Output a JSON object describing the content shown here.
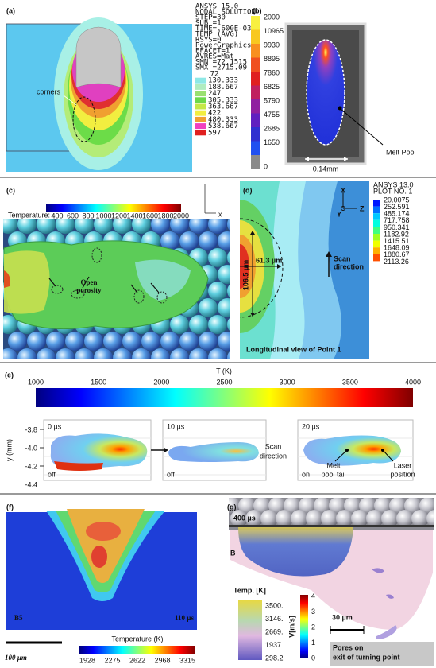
{
  "panels": {
    "a": {
      "label": "(a)",
      "ansys_lines": [
        "ANSYS 15.0",
        "NODAL SOLUTION",
        "STEP=30",
        "SUB =1",
        "TIME=.600E-03",
        "TEMP      (AVG)",
        "RSYS=0",
        "PowerGraphics",
        "EFACET=1",
        "AVRES=Mat",
        "SMN =72.1515",
        "SMX =2715.09"
      ],
      "legend": [
        "72",
        "130.333",
        "188.667",
        "247",
        "305.333",
        "363.667",
        "422",
        "480.333",
        "538.667",
        "597"
      ],
      "annotation": "corners"
    },
    "b": {
      "label": "(b)",
      "scale": [
        "2000",
        "10965",
        "9930",
        "8895",
        "7860",
        "6825",
        "5790",
        "4755",
        "2685",
        "1650",
        "0"
      ],
      "scale_bar": "0.14mm",
      "callout": "Melt Pool"
    },
    "c": {
      "label": "(c)",
      "colorbar_title": "Temperature:",
      "colorbar_ticks": [
        "400",
        "600",
        "800",
        "1000",
        "1200",
        "1400",
        "1600",
        "1800",
        "2000"
      ],
      "annotation": [
        "Open",
        "porosity"
      ],
      "axis": "x"
    },
    "d": {
      "label": "(d)",
      "header": [
        "ANSYS 13.0",
        "PLOT NO.   1"
      ],
      "legend": [
        "20.0075",
        "252.591",
        "485.174",
        "717.758",
        "950.341",
        "1182.92",
        "1415.51",
        "1648.09",
        "1880.67",
        "2113.26"
      ],
      "width_label": "61.3 µm",
      "depth_label": "106.5 µm",
      "direction": [
        "Scan",
        "direction"
      ],
      "caption": "Longitudinal view of Point 1",
      "axes": [
        "X",
        "Y",
        "Z"
      ]
    },
    "e": {
      "label": "(e)",
      "colorbar_title": "T (K)",
      "colorbar_ticks": [
        "1000",
        "1500",
        "2000",
        "2500",
        "3000",
        "3500",
        "4000"
      ],
      "y_label": "y (mm)",
      "y_ticks": [
        "-3.8",
        "-4.0",
        "-4.2",
        "-4.4"
      ],
      "frames": [
        {
          "time": "0 µs",
          "laser": "off"
        },
        {
          "time": "10 µs",
          "laser": "off"
        },
        {
          "time": "20 µs",
          "laser": "on"
        }
      ],
      "direction": [
        "Scan",
        "direction"
      ],
      "tail": [
        "Melt",
        "pool tail"
      ],
      "laser": [
        "Laser",
        "position"
      ]
    },
    "f": {
      "label": "(f)",
      "sample": "B5",
      "time": "110 µs",
      "scale_bar": "100 µm",
      "colorbar_title": "Temperature (K)",
      "colorbar_ticks": [
        "1928",
        "2275",
        "2622",
        "2968",
        "3315"
      ]
    },
    "g": {
      "label": "(g)",
      "time": "400 µs",
      "sample": "B",
      "temp_title": "Temp. [K]",
      "temp_ticks": [
        "3500.",
        "3146.",
        "2669.",
        "1937.",
        "298.2"
      ],
      "velocity_title": "V[m/s]",
      "velocity_ticks": [
        "4",
        "3",
        "2",
        "1",
        "0"
      ],
      "scale_bar": "30 µm",
      "note": [
        "Pores on",
        "exit of turning point"
      ]
    }
  }
}
